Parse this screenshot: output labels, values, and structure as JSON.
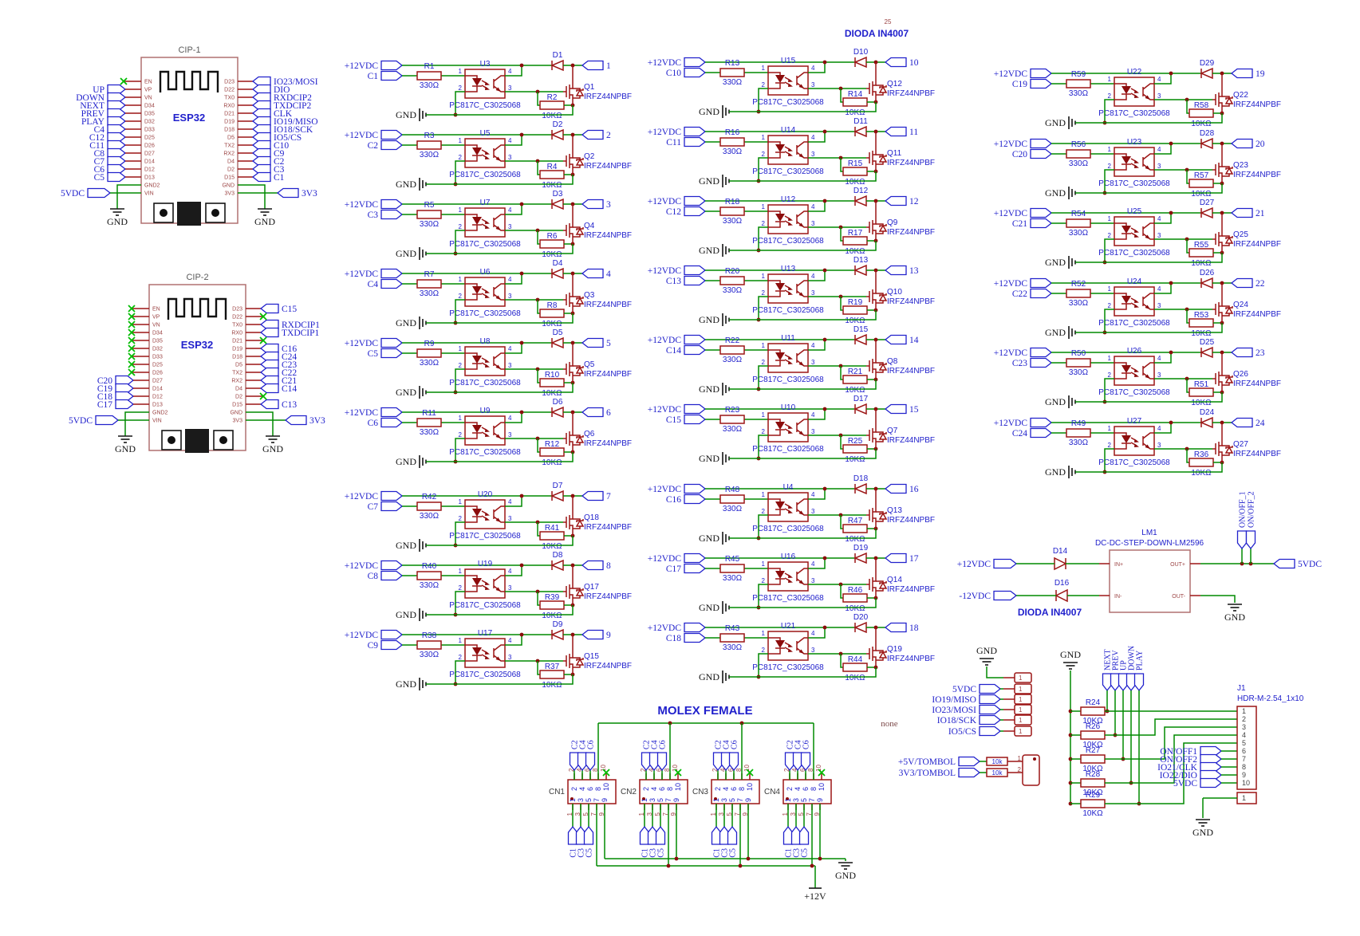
{
  "note": {
    "num": "25",
    "label": "DIODA IN4007"
  },
  "stage_common": {
    "in1": "+12VDC",
    "rin_val": "330Ω",
    "rg_val": "10KΩ",
    "opto_part": "PC817C_C3025068",
    "q_part": "IRFZ44NPBF",
    "gnd": "GND",
    "pins": [
      "1",
      "2",
      "4",
      "3"
    ]
  },
  "stages": [
    {
      "out": "1",
      "c": "C1",
      "rin": "R1",
      "u": "U3",
      "d": "D1",
      "q": "Q1",
      "rg": "R2"
    },
    {
      "out": "2",
      "c": "C2",
      "rin": "R3",
      "u": "U5",
      "d": "D2",
      "q": "Q2",
      "rg": "R4"
    },
    {
      "out": "3",
      "c": "C3",
      "rin": "R5",
      "u": "U7",
      "d": "D3",
      "q": "Q4",
      "rg": "R6"
    },
    {
      "out": "4",
      "c": "C4",
      "rin": "R7",
      "u": "U6",
      "d": "D4",
      "q": "Q3",
      "rg": "R8"
    },
    {
      "out": "5",
      "c": "C5",
      "rin": "R9",
      "u": "U8",
      "d": "D5",
      "q": "Q5",
      "rg": "R10"
    },
    {
      "out": "6",
      "c": "C6",
      "rin": "R11",
      "u": "U9",
      "d": "D6",
      "q": "Q6",
      "rg": "R12"
    },
    {
      "out": "7",
      "c": "C7",
      "rin": "R42",
      "u": "U20",
      "d": "D7",
      "q": "Q18",
      "rg": "R41"
    },
    {
      "out": "8",
      "c": "C8",
      "rin": "R40",
      "u": "U19",
      "d": "D8",
      "q": "Q17",
      "rg": "R39"
    },
    {
      "out": "9",
      "c": "C9",
      "rin": "R38",
      "u": "U17",
      "d": "D9",
      "q": "Q15",
      "rg": "R37"
    },
    {
      "out": "10",
      "c": "C10",
      "rin": "R13",
      "u": "U15",
      "d": "D10",
      "q": "Q12",
      "rg": "R14"
    },
    {
      "out": "11",
      "c": "C11",
      "rin": "R16",
      "u": "U14",
      "d": "D11",
      "q": "Q11",
      "rg": "R15"
    },
    {
      "out": "12",
      "c": "C12",
      "rin": "R18",
      "u": "U12",
      "d": "D12",
      "q": "Q9",
      "rg": "R17"
    },
    {
      "out": "13",
      "c": "C13",
      "rin": "R20",
      "u": "U13",
      "d": "D13",
      "q": "Q10",
      "rg": "R19"
    },
    {
      "out": "14",
      "c": "C14",
      "rin": "R22",
      "u": "U11",
      "d": "D15",
      "q": "Q8",
      "rg": "R21"
    },
    {
      "out": "15",
      "c": "C15",
      "rin": "R23",
      "u": "U10",
      "d": "D17",
      "q": "Q7",
      "rg": "R25"
    },
    {
      "out": "16",
      "c": "C16",
      "rin": "R48",
      "u": "U4",
      "d": "D18",
      "q": "Q13",
      "rg": "R47"
    },
    {
      "out": "17",
      "c": "C17",
      "rin": "R45",
      "u": "U16",
      "d": "D19",
      "q": "Q14",
      "rg": "R46"
    },
    {
      "out": "18",
      "c": "C18",
      "rin": "R43",
      "u": "U21",
      "d": "D20",
      "q": "Q19",
      "rg": "R44"
    },
    {
      "out": "19",
      "c": "C19",
      "rin": "R59",
      "u": "U22",
      "d": "D29",
      "q": "Q22",
      "rg": "R58"
    },
    {
      "out": "20",
      "c": "C20",
      "rin": "R56",
      "u": "U23",
      "d": "D28",
      "q": "Q23",
      "rg": "R57"
    },
    {
      "out": "21",
      "c": "C21",
      "rin": "R54",
      "u": "U25",
      "d": "D27",
      "q": "Q25",
      "rg": "R55"
    },
    {
      "out": "22",
      "c": "C22",
      "rin": "R52",
      "u": "U24",
      "d": "D26",
      "q": "Q24",
      "rg": "R53"
    },
    {
      "out": "23",
      "c": "C23",
      "rin": "R50",
      "u": "U26",
      "d": "D25",
      "q": "Q26",
      "rg": "R51"
    },
    {
      "out": "24",
      "c": "C24",
      "rin": "R49",
      "u": "U27",
      "d": "D24",
      "q": "Q27",
      "rg": "R36"
    }
  ],
  "esp32": {
    "modules": [
      {
        "ref": "CIP-1",
        "chip": "ESP32",
        "gnd_label": "GND",
        "left": [
          {
            "pin": "EN",
            "nc": true
          },
          {
            "pin": "VP",
            "port": "UP"
          },
          {
            "pin": "VN",
            "port": "DOWN"
          },
          {
            "pin": "D34",
            "port": "NEXT"
          },
          {
            "pin": "D35",
            "port": "PREV"
          },
          {
            "pin": "D32",
            "port": "PLAY"
          },
          {
            "pin": "D33",
            "port": "C4"
          },
          {
            "pin": "D25",
            "port": "C12"
          },
          {
            "pin": "D26",
            "port": "C11"
          },
          {
            "pin": "D27",
            "port": "C8"
          },
          {
            "pin": "D14",
            "port": "C7"
          },
          {
            "pin": "D12",
            "port": "C6"
          },
          {
            "pin": "D13",
            "port": "C5"
          },
          {
            "pin": "GND2",
            "gnd": true
          },
          {
            "pin": "VIN",
            "vport": "5VDC"
          }
        ],
        "right": [
          {
            "pin": "D23",
            "port": "IO23/MOSI"
          },
          {
            "pin": "D22",
            "port": "DIO"
          },
          {
            "pin": "TX0",
            "port": "RXDCIP2"
          },
          {
            "pin": "RX0",
            "port": "TXDCIP2"
          },
          {
            "pin": "D21",
            "port": "CLK"
          },
          {
            "pin": "D19",
            "port": "IO19/MISO"
          },
          {
            "pin": "D18",
            "port": "IO18/SCK"
          },
          {
            "pin": "D5",
            "port": "IO5/CS"
          },
          {
            "pin": "TX2",
            "port": "C10"
          },
          {
            "pin": "RX2",
            "port": "C9"
          },
          {
            "pin": "D4",
            "port": "C2"
          },
          {
            "pin": "D2",
            "port": "C3"
          },
          {
            "pin": "D15",
            "port": "C1"
          },
          {
            "pin": "GND",
            "gnd": true
          },
          {
            "pin": "3V3",
            "vport": "3V3"
          }
        ]
      },
      {
        "ref": "CIP-2",
        "chip": "ESP32",
        "gnd_label": "GND",
        "left": [
          {
            "pin": "EN",
            "nc": true
          },
          {
            "pin": "VP",
            "nc": true
          },
          {
            "pin": "VN",
            "nc": true
          },
          {
            "pin": "D34",
            "nc": true
          },
          {
            "pin": "D35",
            "nc": true
          },
          {
            "pin": "D32",
            "nc": true
          },
          {
            "pin": "D33",
            "nc": true
          },
          {
            "pin": "D25",
            "nc": true
          },
          {
            "pin": "D26",
            "nc": true
          },
          {
            "pin": "D27",
            "port": "C20"
          },
          {
            "pin": "D14",
            "port": "C19"
          },
          {
            "pin": "D12",
            "port": "C18"
          },
          {
            "pin": "D13",
            "port": "C17"
          },
          {
            "pin": "GND2",
            "gnd": true
          },
          {
            "pin": "VIN",
            "vport": "5VDC"
          }
        ],
        "right": [
          {
            "pin": "D23",
            "port": "C15"
          },
          {
            "pin": "D22",
            "nc": true
          },
          {
            "pin": "TX0",
            "port": "RXDCIP1"
          },
          {
            "pin": "RX0",
            "port": "TXDCIP1"
          },
          {
            "pin": "D21",
            "nc": true
          },
          {
            "pin": "D19",
            "port": "C16"
          },
          {
            "pin": "D18",
            "port": "C24"
          },
          {
            "pin": "D5",
            "port": "C23"
          },
          {
            "pin": "TX2",
            "port": "C22"
          },
          {
            "pin": "RX2",
            "port": "C21"
          },
          {
            "pin": "D4",
            "port": "C14"
          },
          {
            "pin": "D2",
            "nc": true
          },
          {
            "pin": "D15",
            "port": "C13"
          },
          {
            "pin": "GND",
            "gnd": true
          },
          {
            "pin": "3V3",
            "vport": "3V3"
          }
        ]
      }
    ]
  },
  "molex": {
    "title": "MOLEX FEMALE",
    "connectors": [
      "CN1",
      "CN2",
      "CN3",
      "CN4"
    ],
    "top_ports": [
      "C2",
      "C4",
      "C6"
    ],
    "bottom_ports": [
      "C1",
      "C3",
      "C5"
    ],
    "top_pins": [
      "2",
      "4",
      "6",
      "8",
      "10"
    ],
    "bottom_pins": [
      "1",
      "3",
      "5",
      "7",
      "9"
    ],
    "gnd": "GND",
    "power": "+12V"
  },
  "spi": {
    "gnd": "GND",
    "pin": "1",
    "ports": [
      "5VDC",
      "IO19/MISO",
      "IO23/MOSI",
      "IO18/SCK",
      "IO5/CS"
    ],
    "none": "none"
  },
  "tombol": {
    "ports": [
      "+5V/TOMBOL",
      "3V3/TOMBOL"
    ],
    "values": [
      "10k",
      "10k"
    ],
    "pins": [
      "1",
      "2"
    ]
  },
  "lm": {
    "ref": "LM1",
    "part": "DC-DC-STEP-DOWN-LM2596",
    "pins": {
      "in_p": "IN+",
      "in_n": "IN-",
      "out_p": "OUT+",
      "out_n": "OUT-"
    },
    "d_top": "D14",
    "d_bot": "D16",
    "in_top": "+12VDC",
    "in_bot": "-12VDC",
    "out": "5VDC",
    "onoff": [
      "ON/OFF_1",
      "ON/OFF_2"
    ],
    "gnd": "GND",
    "note": "DIODA IN4007"
  },
  "j1": {
    "ref": "J1",
    "part": "HDR-M-2.54_1x10",
    "pins": [
      "1",
      "2",
      "3",
      "4",
      "5",
      "6",
      "7",
      "8",
      "9",
      "10"
    ],
    "resistors": [
      {
        "name": "R24",
        "value": "10KΩ"
      },
      {
        "name": "R26",
        "value": "10KΩ"
      },
      {
        "name": "R27",
        "value": "10KΩ"
      },
      {
        "name": "R28",
        "value": "10KΩ"
      },
      {
        "name": "R29",
        "value": "10KΩ"
      }
    ],
    "buttons": [
      "NEXT",
      "PREV",
      "UP",
      "DOWN",
      "PLAY"
    ],
    "side_ports": [
      "ON/OFF1",
      "ON/OFF2",
      "IO21/CLK",
      "IO22/DIO",
      "5VDC"
    ],
    "gnd_top": "GND",
    "gnd_bottom": "GND",
    "extra_pin": "1"
  }
}
